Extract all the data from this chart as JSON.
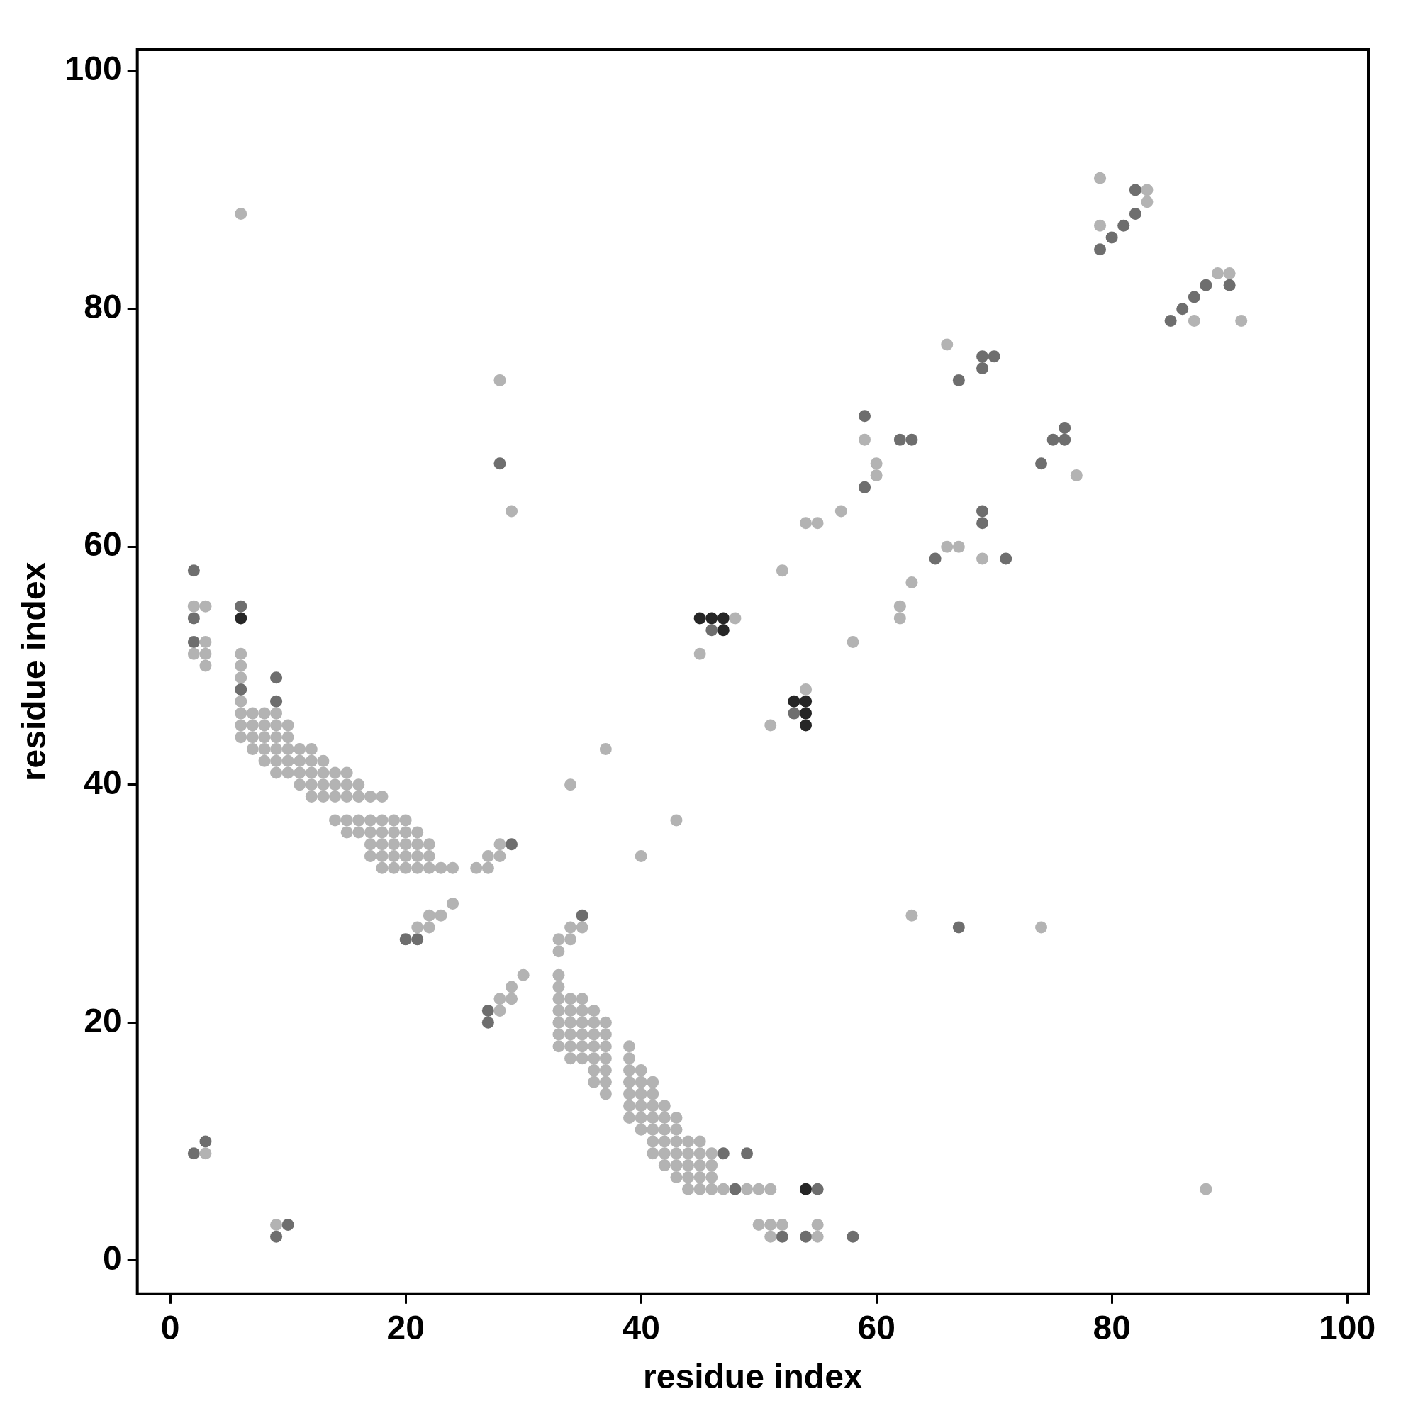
{
  "chart_data": {
    "type": "scatter",
    "xlabel": "residue index",
    "ylabel": "residue index",
    "marker": "circle",
    "xlim": [
      -2.8,
      101.8
    ],
    "ylim": [
      -2.8,
      101.8
    ],
    "xticks": [
      0,
      20,
      40,
      60,
      80,
      100
    ],
    "yticks": [
      0,
      20,
      40,
      60,
      80,
      100
    ],
    "series": [
      {
        "color": "#b3b3b3",
        "x": [
          2,
          3,
          3,
          2,
          3,
          3,
          6,
          6,
          6,
          6,
          6,
          7,
          8,
          9,
          6,
          7,
          8,
          9,
          10,
          6,
          7,
          8,
          9,
          10,
          7,
          8,
          9,
          10,
          11,
          12,
          8,
          9,
          10,
          11,
          12,
          13,
          9,
          10,
          11,
          12,
          13,
          14,
          15,
          11,
          12,
          13,
          14,
          15,
          16,
          12,
          13,
          14,
          15,
          16,
          17,
          18,
          14,
          15,
          16,
          17,
          18,
          19,
          20,
          15,
          16,
          17,
          18,
          19,
          20,
          21,
          17,
          18,
          19,
          20,
          21,
          22,
          28,
          17,
          18,
          19,
          20,
          21,
          22,
          27,
          28,
          18,
          19,
          20,
          21,
          22,
          23,
          24,
          26,
          27,
          24,
          22,
          23,
          21,
          22,
          3,
          9,
          6,
          28,
          29,
          34,
          35,
          33,
          34,
          33,
          30,
          29,
          28,
          29,
          28,
          33,
          33,
          33,
          34,
          35,
          33,
          34,
          35,
          36,
          33,
          34,
          35,
          36,
          37,
          33,
          34,
          35,
          36,
          37,
          33,
          34,
          35,
          36,
          37,
          34,
          35,
          36,
          37,
          36,
          37,
          36,
          37,
          37,
          39,
          39,
          39,
          40,
          39,
          40,
          41,
          39,
          40,
          41,
          39,
          40,
          41,
          42,
          39,
          40,
          41,
          42,
          43,
          40,
          41,
          42,
          43,
          41,
          42,
          43,
          44,
          45,
          41,
          42,
          43,
          44,
          45,
          46,
          42,
          43,
          44,
          45,
          46,
          43,
          44,
          45,
          46,
          44,
          45,
          46,
          47,
          49,
          50,
          51,
          50,
          51,
          52,
          55,
          51,
          55,
          34,
          37,
          43,
          40,
          48,
          45,
          54,
          51,
          52,
          54,
          55,
          57,
          58,
          62,
          62,
          63,
          66,
          67,
          69,
          59,
          60,
          60,
          66,
          77,
          79,
          83,
          83,
          79,
          89,
          90,
          87,
          91,
          63,
          74,
          88
        ],
        "values": [
          55,
          55,
          52,
          51,
          51,
          50,
          51,
          50,
          49,
          47,
          46,
          46,
          46,
          46,
          45,
          45,
          45,
          45,
          45,
          44,
          44,
          44,
          44,
          44,
          43,
          43,
          43,
          43,
          43,
          43,
          42,
          42,
          42,
          42,
          42,
          42,
          41,
          41,
          41,
          41,
          41,
          41,
          41,
          40,
          40,
          40,
          40,
          40,
          40,
          39,
          39,
          39,
          39,
          39,
          39,
          39,
          37,
          37,
          37,
          37,
          37,
          37,
          37,
          36,
          36,
          36,
          36,
          36,
          36,
          36,
          35,
          35,
          35,
          35,
          35,
          35,
          35,
          34,
          34,
          34,
          34,
          34,
          34,
          34,
          34,
          33,
          33,
          33,
          33,
          33,
          33,
          33,
          33,
          33,
          30,
          29,
          29,
          28,
          28,
          9,
          3,
          88,
          74,
          63,
          28,
          28,
          27,
          27,
          26,
          24,
          23,
          22,
          22,
          21,
          24,
          23,
          22,
          22,
          22,
          21,
          21,
          21,
          21,
          20,
          20,
          20,
          20,
          20,
          19,
          19,
          19,
          19,
          19,
          18,
          18,
          18,
          18,
          18,
          17,
          17,
          17,
          17,
          16,
          16,
          15,
          15,
          14,
          18,
          17,
          16,
          16,
          15,
          15,
          15,
          14,
          14,
          14,
          13,
          13,
          13,
          13,
          12,
          12,
          12,
          12,
          12,
          11,
          11,
          11,
          11,
          10,
          10,
          10,
          10,
          10,
          9,
          9,
          9,
          9,
          9,
          9,
          8,
          8,
          8,
          8,
          8,
          7,
          7,
          7,
          7,
          6,
          6,
          6,
          6,
          6,
          6,
          6,
          3,
          3,
          3,
          3,
          2,
          2,
          40,
          43,
          37,
          34,
          54,
          51,
          48,
          45,
          58,
          62,
          62,
          63,
          52,
          55,
          54,
          57,
          60,
          60,
          59,
          69,
          67,
          66,
          77,
          66,
          91,
          90,
          89,
          87,
          83,
          83,
          79,
          79,
          29,
          28,
          6
        ]
      },
      {
        "color": "#6e6e6e",
        "x": [
          2,
          2,
          2,
          6,
          6,
          9,
          9,
          29,
          20,
          21,
          2,
          3,
          9,
          10,
          28,
          35,
          27,
          27,
          47,
          49,
          48,
          55,
          52,
          54,
          58,
          46,
          53,
          65,
          69,
          69,
          71,
          59,
          62,
          63,
          59,
          69,
          70,
          69,
          67,
          76,
          75,
          76,
          74,
          82,
          82,
          81,
          80,
          79,
          88,
          90,
          87,
          86,
          85,
          67
        ],
        "values": [
          58,
          54,
          52,
          55,
          48,
          49,
          47,
          35,
          27,
          27,
          9,
          10,
          2,
          3,
          67,
          29,
          21,
          20,
          9,
          9,
          6,
          6,
          2,
          2,
          2,
          53,
          46,
          59,
          63,
          62,
          59,
          71,
          69,
          69,
          65,
          76,
          76,
          75,
          74,
          70,
          69,
          69,
          67,
          90,
          88,
          87,
          86,
          85,
          82,
          82,
          81,
          80,
          79,
          28
        ]
      },
      {
        "color": "#262626",
        "x": [
          6,
          45,
          46,
          47,
          47,
          53,
          54,
          54,
          54,
          54
        ],
        "values": [
          54,
          54,
          54,
          54,
          53,
          47,
          47,
          46,
          45,
          6
        ]
      }
    ]
  }
}
